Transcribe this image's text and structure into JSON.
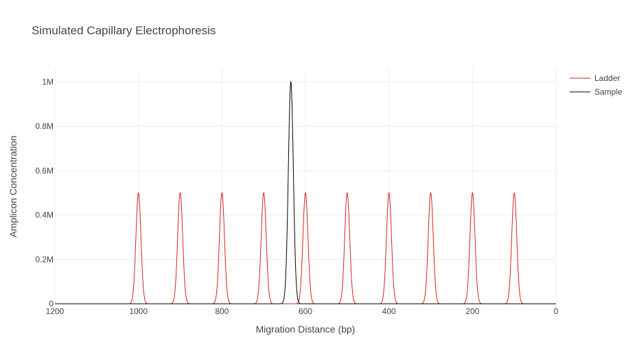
{
  "chart_data": {
    "type": "line",
    "title": "Simulated Capillary Electrophoresis",
    "xlabel": "Migration Distance (bp)",
    "ylabel": "Amplicon Concentration",
    "xlim": [
      1200,
      0
    ],
    "x_reversed": true,
    "ylim": [
      -40000,
      1060000
    ],
    "x_ticks": [
      1200,
      1000,
      800,
      600,
      400,
      200,
      0
    ],
    "x_tick_labels": [
      "1200",
      "1000",
      "800",
      "600",
      "400",
      "200",
      "0"
    ],
    "y_ticks": [
      0,
      200000,
      400000,
      600000,
      800000,
      1000000
    ],
    "y_tick_labels": [
      "0",
      "0.2M",
      "0.4M",
      "0.6M",
      "0.8M",
      "1M"
    ],
    "grid": true,
    "legend_position": "top-right",
    "series": [
      {
        "name": "Ladder",
        "color": "#d62020",
        "peaks": [
          {
            "x": 1000,
            "y": 500000
          },
          {
            "x": 900,
            "y": 500000
          },
          {
            "x": 800,
            "y": 500000
          },
          {
            "x": 700,
            "y": 500000
          },
          {
            "x": 600,
            "y": 500000
          },
          {
            "x": 500,
            "y": 500000
          },
          {
            "x": 400,
            "y": 500000
          },
          {
            "x": 300,
            "y": 500000
          },
          {
            "x": 200,
            "y": 500000
          },
          {
            "x": 100,
            "y": 500000
          }
        ]
      },
      {
        "name": "Sample",
        "color": "#000000",
        "peaks": [
          {
            "x": 635,
            "y": 1000000
          }
        ]
      }
    ]
  }
}
